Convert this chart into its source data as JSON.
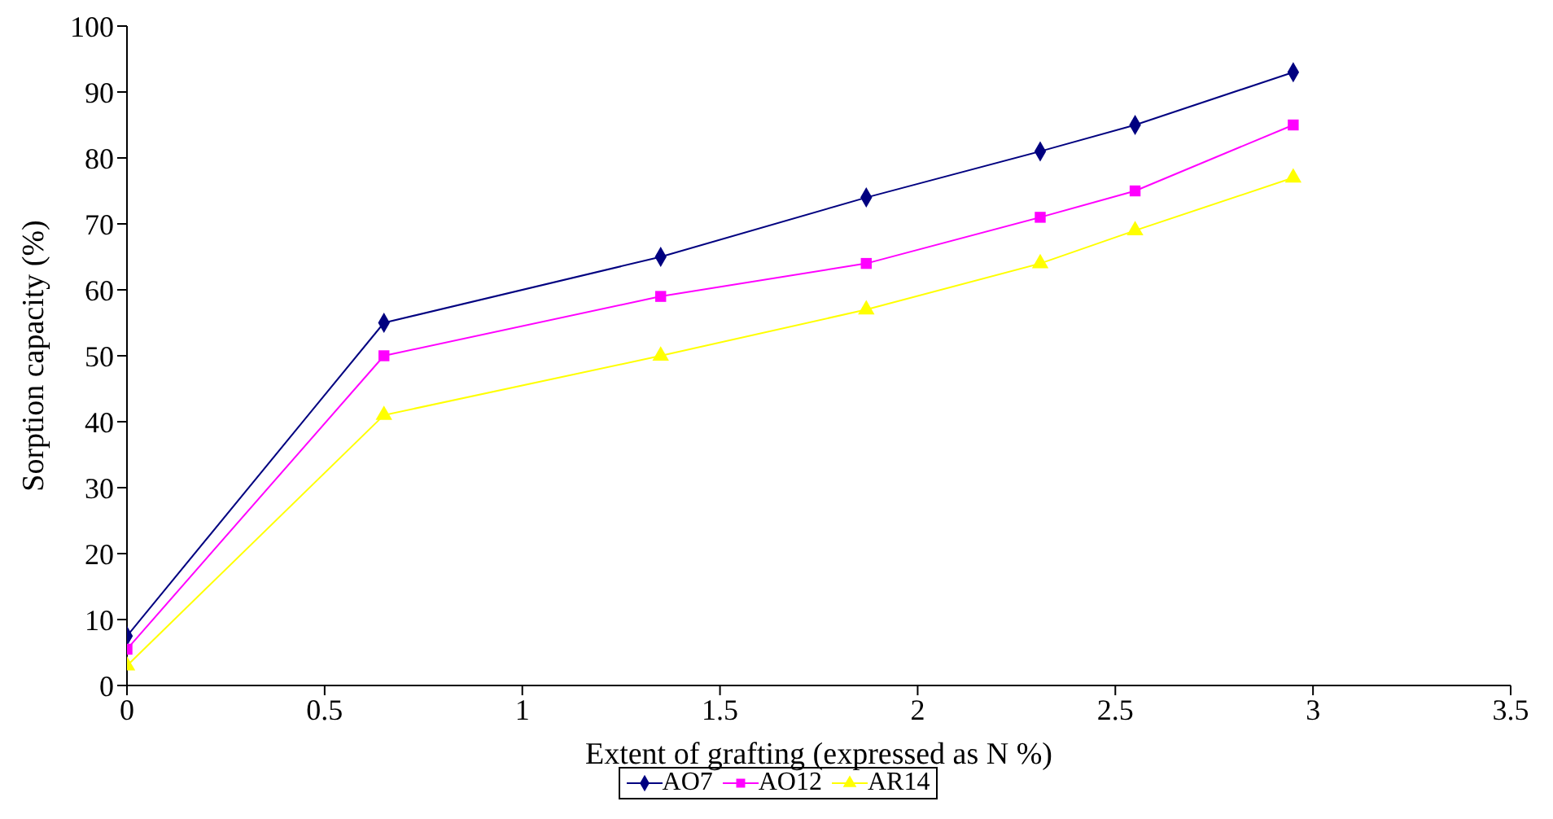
{
  "chart_data": {
    "type": "line",
    "xlabel": "Extent of grafting (expressed as N %)",
    "ylabel": "Sorption capacity (%)",
    "x": [
      0,
      0.65,
      1.35,
      1.87,
      2.31,
      2.55,
      2.95
    ],
    "series": [
      {
        "name": "AO7",
        "color": "#000080",
        "marker": "diamond",
        "values": [
          7.5,
          55,
          65,
          74,
          81,
          85,
          93
        ]
      },
      {
        "name": "AO12",
        "color": "#ff00ff",
        "marker": "square",
        "values": [
          5.5,
          50,
          59,
          64,
          71,
          75,
          85
        ]
      },
      {
        "name": "AR14",
        "color": "#ffff00",
        "marker": "triangle",
        "values": [
          3,
          41,
          50,
          57,
          64,
          69,
          77
        ]
      }
    ],
    "xlim": [
      0,
      3.5
    ],
    "xticks": [
      0,
      0.5,
      1,
      1.5,
      2,
      2.5,
      3,
      3.5
    ],
    "ylim": [
      0,
      100
    ],
    "yticks": [
      0,
      10,
      20,
      30,
      40,
      50,
      60,
      70,
      80,
      90,
      100
    ],
    "grid": false,
    "legend": "bottom",
    "line_style": "solid"
  }
}
